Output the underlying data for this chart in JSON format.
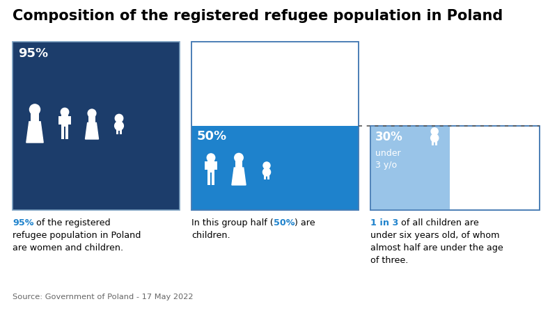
{
  "title": "Composition of the registered refugee population in Poland",
  "title_fontsize": 15,
  "background_color": "#ffffff",
  "dark_blue": "#1c3d6b",
  "medium_blue": "#1e82cc",
  "light_blue": "#99c4e8",
  "lighter_blue": "#b8d8f0",
  "border_color": "#4a7eb5",
  "source_text": "Source: Government of Poland - 17 May 2022",
  "label1": "95%",
  "label2": "50%",
  "label3": "30%",
  "label3_sub": "under\n3 y/o",
  "caption1_bold": "95%",
  "caption1_rest": " of the registered\nrefugee population in Poland\nare women and children.",
  "caption2_pre": "In this group half (",
  "caption2_bold": "50%",
  "caption2_post": ") are\nchildren.",
  "caption3_bold": "1 in 3",
  "caption3_rest": " of all children are\nunder six years old, of whom\nalmost half are under the age\nof three."
}
